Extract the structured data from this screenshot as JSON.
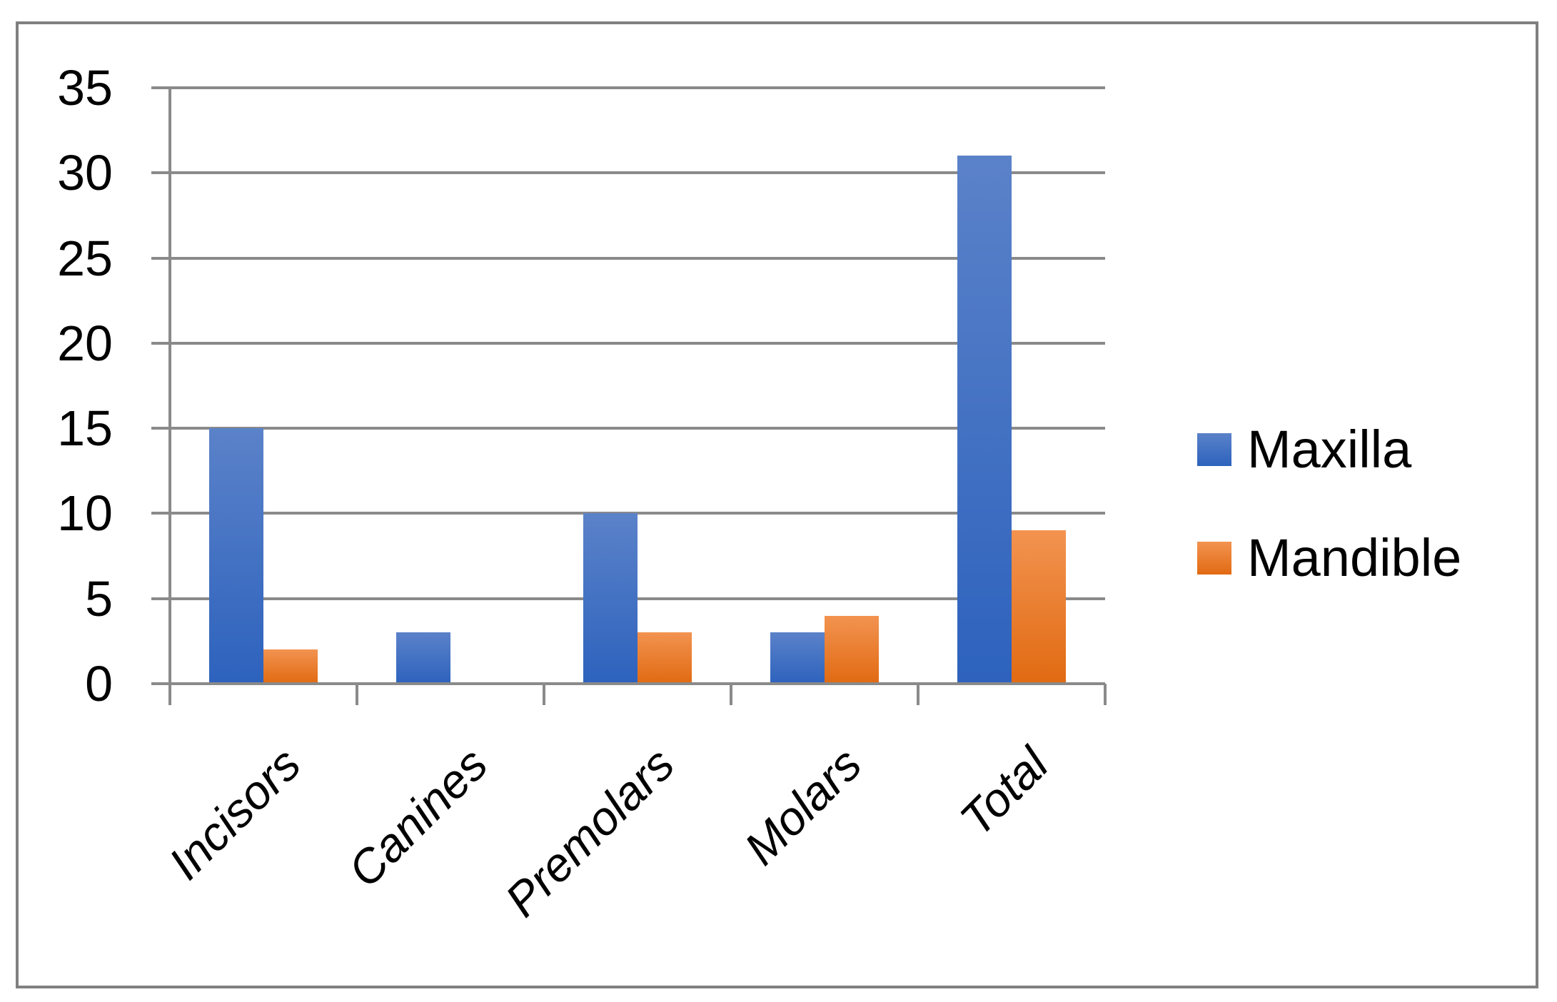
{
  "chart_data": {
    "type": "bar",
    "title": "",
    "xlabel": "",
    "ylabel": "",
    "categories": [
      "Incisors",
      "Canines",
      "Premolars",
      "Molars",
      "Total"
    ],
    "series": [
      {
        "name": "Maxilla",
        "values": [
          15,
          3,
          10,
          3,
          31
        ]
      },
      {
        "name": "Mandible",
        "values": [
          2,
          0,
          3,
          4,
          9
        ]
      }
    ],
    "ylim": [
      0,
      35
    ],
    "y_tick_step": 5,
    "y_ticks": [
      0,
      5,
      10,
      15,
      20,
      25,
      30,
      35
    ],
    "grid": "horizontal-major",
    "legend_position": "right",
    "x_label_rotation_deg": 45,
    "x_label_style": "italic"
  },
  "colors": {
    "maxilla_top": "#5B82C9",
    "maxilla_bottom": "#2D62BD",
    "mandible_top": "#F29350",
    "mandible_bottom": "#E16A12",
    "gridline": "#8A8A8A",
    "frame": "#808080",
    "background": "#FFFFFF",
    "text": "#000000"
  }
}
